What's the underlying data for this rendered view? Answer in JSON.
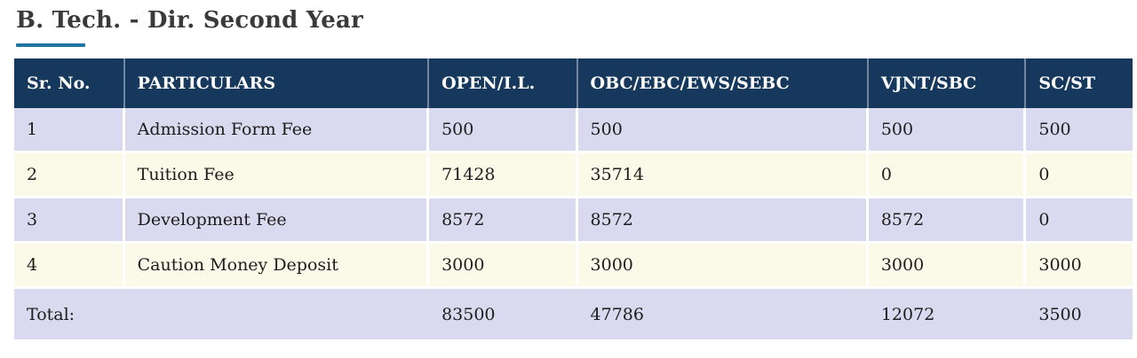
{
  "page": {
    "title": "B. Tech. - Dir. Second Year"
  },
  "table": {
    "columns": [
      "Sr. No.",
      "PARTICULARS",
      "OPEN/I.L.",
      "OBC/EBC/EWS/SEBC",
      "VJNT/SBC",
      "SC/ST"
    ],
    "rows": [
      [
        "1",
        "Admission Form Fee",
        "500",
        "500",
        "500",
        "500"
      ],
      [
        "2",
        "Tuition Fee",
        "71428",
        "35714",
        "0",
        "0"
      ],
      [
        "3",
        "Development Fee",
        "8572",
        "8572",
        "8572",
        "0"
      ],
      [
        "4",
        "Caution Money Deposit",
        "3000",
        "3000",
        "3000",
        "3000"
      ]
    ],
    "total_row": [
      "Total:",
      "83500",
      "47786",
      "12072",
      "3500"
    ]
  },
  "colors": {
    "header_bg": "#15385c",
    "header_text": "#ffffff",
    "row_odd_bg": "#d9d9ef",
    "row_even_bg": "#fbf9e8",
    "body_text": "#1d1d1d",
    "title_text": "#3a3a3a",
    "accent_underline": "#1e74a3"
  }
}
